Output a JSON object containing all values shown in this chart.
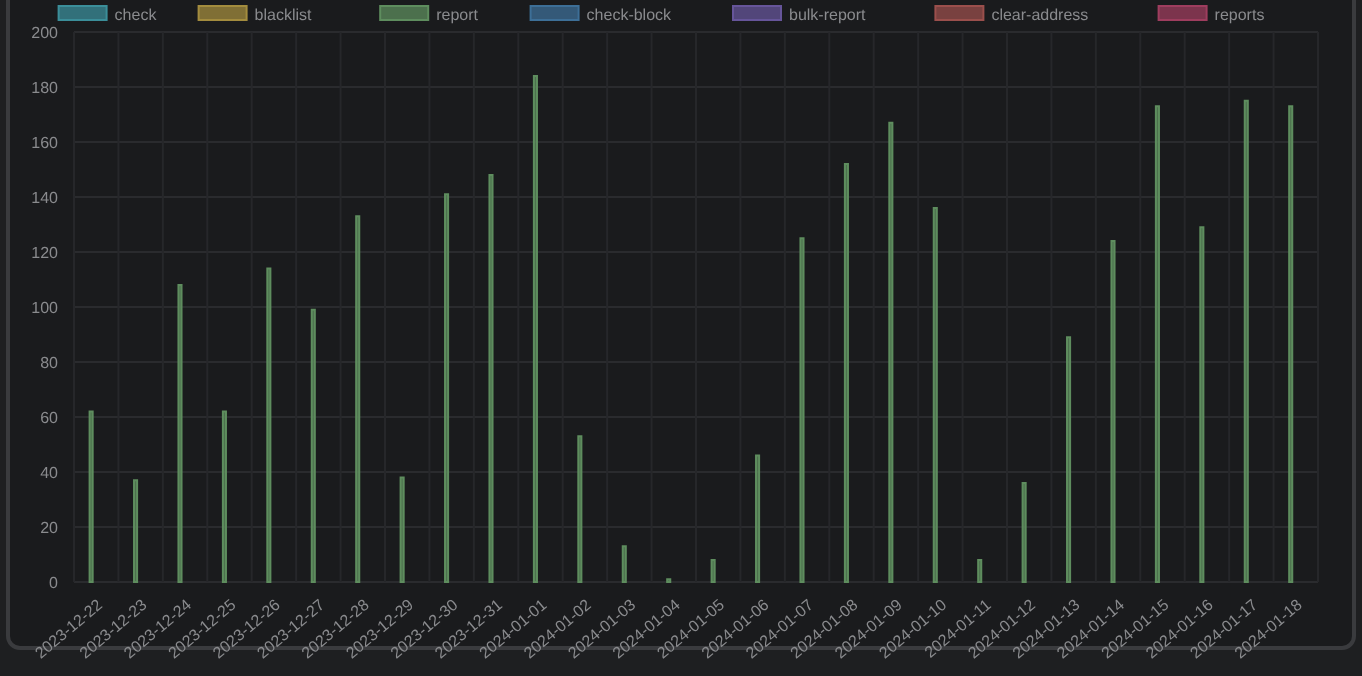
{
  "chart_data": {
    "type": "bar",
    "categories": [
      "2023-12-22",
      "2023-12-23",
      "2023-12-24",
      "2023-12-25",
      "2023-12-26",
      "2023-12-27",
      "2023-12-28",
      "2023-12-29",
      "2023-12-30",
      "2023-12-31",
      "2024-01-01",
      "2024-01-02",
      "2024-01-03",
      "2024-01-04",
      "2024-01-05",
      "2024-01-06",
      "2024-01-07",
      "2024-01-08",
      "2024-01-09",
      "2024-01-10",
      "2024-01-11",
      "2024-01-12",
      "2024-01-13",
      "2024-01-14",
      "2024-01-15",
      "2024-01-16",
      "2024-01-17",
      "2024-01-18"
    ],
    "series": [
      {
        "name": "check",
        "color": "#3b8e99",
        "values": [
          null,
          null,
          null,
          null,
          null,
          null,
          null,
          null,
          null,
          null,
          null,
          null,
          null,
          null,
          null,
          null,
          null,
          null,
          null,
          null,
          null,
          null,
          null,
          null,
          null,
          null,
          null,
          null
        ]
      },
      {
        "name": "blacklist",
        "color": "#a38c3e",
        "values": [
          null,
          null,
          null,
          null,
          null,
          null,
          null,
          null,
          null,
          null,
          null,
          null,
          null,
          null,
          null,
          null,
          null,
          null,
          null,
          null,
          null,
          null,
          null,
          null,
          null,
          null,
          null,
          null
        ]
      },
      {
        "name": "report",
        "color": "#5e8d5e",
        "values": [
          62,
          37,
          108,
          62,
          114,
          99,
          133,
          38,
          141,
          148,
          184,
          53,
          13,
          1,
          8,
          46,
          125,
          152,
          167,
          136,
          8,
          36,
          89,
          124,
          173,
          129,
          175,
          173
        ]
      },
      {
        "name": "check-block",
        "color": "#3d6f97",
        "values": [
          null,
          null,
          null,
          null,
          null,
          null,
          null,
          null,
          null,
          null,
          null,
          null,
          null,
          null,
          null,
          null,
          null,
          null,
          null,
          null,
          null,
          null,
          null,
          null,
          null,
          null,
          null,
          null
        ]
      },
      {
        "name": "bulk-report",
        "color": "#66559a",
        "values": [
          null,
          null,
          null,
          null,
          null,
          null,
          null,
          null,
          null,
          null,
          null,
          null,
          null,
          null,
          null,
          null,
          null,
          null,
          null,
          null,
          null,
          null,
          null,
          null,
          null,
          null,
          null,
          null
        ]
      },
      {
        "name": "clear-address",
        "color": "#9a4f4c",
        "values": [
          null,
          null,
          null,
          null,
          null,
          null,
          null,
          null,
          null,
          null,
          null,
          null,
          null,
          null,
          null,
          null,
          null,
          null,
          null,
          null,
          null,
          null,
          null,
          null,
          null,
          null,
          null,
          null
        ]
      },
      {
        "name": "reports",
        "color": "#9e3d5e",
        "values": [
          null,
          null,
          null,
          null,
          null,
          null,
          null,
          null,
          null,
          null,
          null,
          null,
          null,
          null,
          null,
          null,
          null,
          null,
          null,
          null,
          null,
          null,
          null,
          null,
          null,
          null,
          null,
          null
        ]
      }
    ],
    "ylim": [
      0,
      200
    ],
    "yticks": [
      0,
      20,
      40,
      60,
      80,
      100,
      120,
      140,
      160,
      180,
      200
    ],
    "grid": true,
    "legend": "top"
  }
}
